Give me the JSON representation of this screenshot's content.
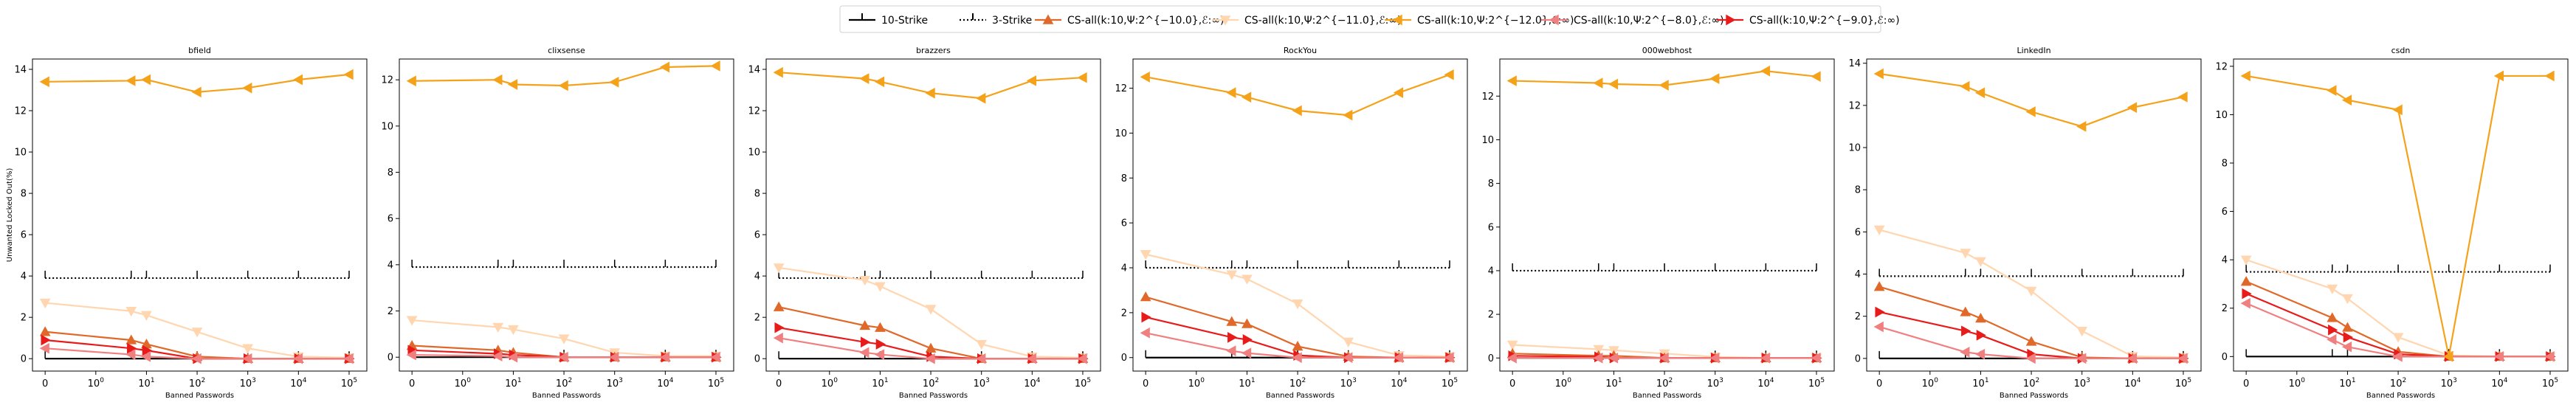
{
  "chart_data": {
    "type": "line",
    "xlabel": "Banned Passwords",
    "ylabel": "Unwanted Locked Out(%)",
    "x_scale": "symlog",
    "x_ticks": [
      {
        "v": 0,
        "t": "0"
      },
      {
        "v": 1,
        "t": "10^0"
      },
      {
        "v": 10,
        "t": "10^1"
      },
      {
        "v": 100,
        "t": "10^2"
      },
      {
        "v": 1000,
        "t": "10^3"
      },
      {
        "v": 10000,
        "t": "10^4"
      },
      {
        "v": 100000,
        "t": "10^5"
      }
    ],
    "x": [
      0,
      5,
      10,
      100,
      1000,
      10000,
      100000
    ],
    "legend": {
      "placement": "top-center",
      "entries": [
        {
          "label": "10-Strike",
          "color": "#000000",
          "style": "solid",
          "marker": "tick"
        },
        {
          "label": "3-Strike",
          "color": "#000000",
          "style": "dotted",
          "marker": "tick"
        },
        {
          "label": "CS-all(k:10,Ψ:2^{−10.0},ℰ:∞)",
          "color": "#e0692a",
          "style": "solid",
          "marker": "triangle-up"
        },
        {
          "label": "CS-all(k:10,Ψ:2^{−11.0},ℰ:∞)",
          "color": "#ffd6b0",
          "style": "solid",
          "marker": "triangle-down"
        },
        {
          "label": "CS-all(k:10,Ψ:2^{−12.0},ℰ:∞)",
          "color": "#f5a21b",
          "style": "solid",
          "marker": "triangle-left"
        },
        {
          "label": "CS-all(k:10,Ψ:2^{−8.0},ℰ:∞)",
          "color": "#f08080",
          "style": "solid",
          "marker": "triangle-left"
        },
        {
          "label": "CS-all(k:10,Ψ:2^{−9.0},ℰ:∞)",
          "color": "#e81b1b",
          "style": "solid",
          "marker": "triangle-right"
        }
      ]
    },
    "panels": [
      {
        "title": "bfield",
        "ylim": [
          -0.6,
          14.5
        ],
        "yticks": [
          0,
          2,
          4,
          6,
          8,
          10,
          12,
          14
        ],
        "series": [
          {
            "key": "strike10",
            "values": [
              0,
              0,
              0,
              0,
              0,
              0,
              0
            ]
          },
          {
            "key": "strike3",
            "values": [
              3.9,
              3.9,
              3.9,
              3.9,
              3.9,
              3.9,
              3.9
            ]
          },
          {
            "key": "psi10",
            "values": [
              1.3,
              0.9,
              0.7,
              0.1,
              0,
              0,
              0
            ]
          },
          {
            "key": "psi11",
            "values": [
              2.7,
              2.3,
              2.1,
              1.3,
              0.5,
              0.1,
              0.05
            ]
          },
          {
            "key": "psi12",
            "values": [
              13.4,
              13.45,
              13.5,
              12.9,
              13.1,
              13.5,
              13.75
            ]
          },
          {
            "key": "psi8",
            "values": [
              0.5,
              0.2,
              0.1,
              0,
              0,
              0,
              0
            ]
          },
          {
            "key": "psi9",
            "values": [
              0.9,
              0.5,
              0.4,
              0,
              0,
              0,
              0
            ]
          }
        ]
      },
      {
        "title": "clixsense",
        "ylim": [
          -0.6,
          12.9
        ],
        "yticks": [
          0,
          2,
          4,
          6,
          8,
          10,
          12
        ],
        "series": [
          {
            "key": "strike10",
            "values": [
              0,
              0,
              0,
              0,
              0,
              0,
              0
            ]
          },
          {
            "key": "strike3",
            "values": [
              3.9,
              3.9,
              3.9,
              3.9,
              3.9,
              3.9,
              3.9
            ]
          },
          {
            "key": "psi10",
            "values": [
              0.5,
              0.3,
              0.2,
              0,
              0,
              0,
              0
            ]
          },
          {
            "key": "psi11",
            "values": [
              1.6,
              1.3,
              1.2,
              0.8,
              0.2,
              0.05,
              0.05
            ]
          },
          {
            "key": "psi12",
            "values": [
              11.95,
              12.0,
              11.8,
              11.75,
              11.9,
              12.55,
              12.6
            ]
          },
          {
            "key": "psi8",
            "values": [
              0.1,
              0.05,
              0,
              0,
              0,
              0,
              0
            ]
          },
          {
            "key": "psi9",
            "values": [
              0.3,
              0.15,
              0.1,
              0,
              0,
              0,
              0
            ]
          }
        ]
      },
      {
        "title": "brazzers",
        "ylim": [
          -0.6,
          14.5
        ],
        "yticks": [
          0,
          2,
          4,
          6,
          8,
          10,
          12,
          14
        ],
        "series": [
          {
            "key": "strike10",
            "values": [
              0,
              0,
              0,
              0,
              0,
              0,
              0
            ]
          },
          {
            "key": "strike3",
            "values": [
              3.9,
              3.9,
              3.9,
              3.9,
              3.9,
              3.9,
              3.9
            ]
          },
          {
            "key": "psi10",
            "values": [
              2.5,
              1.6,
              1.5,
              0.5,
              0,
              0,
              0
            ]
          },
          {
            "key": "psi11",
            "values": [
              4.4,
              3.8,
              3.5,
              2.4,
              0.7,
              0.1,
              0.05
            ]
          },
          {
            "key": "psi12",
            "values": [
              13.85,
              13.55,
              13.4,
              12.85,
              12.6,
              13.45,
              13.6
            ]
          },
          {
            "key": "psi8",
            "values": [
              1.0,
              0.3,
              0.2,
              0,
              0,
              0,
              0
            ]
          },
          {
            "key": "psi9",
            "values": [
              1.5,
              0.8,
              0.7,
              0.1,
              0,
              0,
              0
            ]
          }
        ]
      },
      {
        "title": "RockYou",
        "ylim": [
          -0.6,
          13.3
        ],
        "yticks": [
          0,
          2,
          4,
          6,
          8,
          10,
          12
        ],
        "series": [
          {
            "key": "strike10",
            "values": [
              0,
              0,
              0,
              0,
              0,
              0,
              0
            ]
          },
          {
            "key": "strike3",
            "values": [
              4.0,
              4.0,
              4.0,
              4.0,
              4.0,
              4.0,
              4.0
            ]
          },
          {
            "key": "psi10",
            "values": [
              2.7,
              1.6,
              1.5,
              0.5,
              0.05,
              0,
              0
            ]
          },
          {
            "key": "psi11",
            "values": [
              4.6,
              3.7,
              3.5,
              2.4,
              0.7,
              0.1,
              0.05
            ]
          },
          {
            "key": "psi12",
            "values": [
              12.5,
              11.8,
              11.6,
              11.0,
              10.8,
              11.8,
              12.6
            ]
          },
          {
            "key": "psi8",
            "values": [
              1.1,
              0.3,
              0.2,
              0,
              0,
              0,
              0
            ]
          },
          {
            "key": "psi9",
            "values": [
              1.8,
              0.9,
              0.8,
              0.1,
              0,
              0,
              0
            ]
          }
        ]
      },
      {
        "title": "000webhost",
        "ylim": [
          -0.6,
          13.7
        ],
        "yticks": [
          0,
          2,
          4,
          6,
          8,
          10,
          12
        ],
        "series": [
          {
            "key": "strike10",
            "values": [
              0,
              0,
              0,
              0,
              0,
              0,
              0
            ]
          },
          {
            "key": "strike3",
            "values": [
              4.0,
              4.0,
              4.0,
              4.0,
              4.0,
              4.0,
              4.0
            ]
          },
          {
            "key": "psi10",
            "values": [
              0.2,
              0.1,
              0.1,
              0,
              0,
              0,
              0
            ]
          },
          {
            "key": "psi11",
            "values": [
              0.6,
              0.4,
              0.35,
              0.2,
              0.05,
              0,
              0
            ]
          },
          {
            "key": "psi12",
            "values": [
              12.7,
              12.6,
              12.55,
              12.5,
              12.8,
              13.15,
              12.9
            ]
          },
          {
            "key": "psi8",
            "values": [
              0,
              0,
              0,
              0,
              0,
              0,
              0
            ]
          },
          {
            "key": "psi9",
            "values": [
              0.1,
              0.05,
              0,
              0,
              0,
              0,
              0
            ]
          }
        ]
      },
      {
        "title": "LinkedIn",
        "ylim": [
          -0.6,
          14.2
        ],
        "yticks": [
          0,
          2,
          4,
          6,
          8,
          10,
          12,
          14
        ],
        "series": [
          {
            "key": "strike10",
            "values": [
              0,
              0,
              0,
              0,
              0,
              0,
              0
            ]
          },
          {
            "key": "strike3",
            "values": [
              3.9,
              3.9,
              3.9,
              3.9,
              3.9,
              3.9,
              3.9
            ]
          },
          {
            "key": "psi10",
            "values": [
              3.4,
              2.2,
              1.9,
              0.8,
              0.05,
              0,
              0
            ]
          },
          {
            "key": "psi11",
            "values": [
              6.1,
              5.0,
              4.6,
              3.2,
              1.3,
              0.1,
              0.05
            ]
          },
          {
            "key": "psi12",
            "values": [
              13.5,
              12.9,
              12.6,
              11.7,
              11.0,
              11.9,
              12.4
            ]
          },
          {
            "key": "psi8",
            "values": [
              1.5,
              0.3,
              0.2,
              0,
              0,
              0,
              0
            ]
          },
          {
            "key": "psi9",
            "values": [
              2.2,
              1.3,
              1.1,
              0.2,
              0,
              0,
              0
            ]
          }
        ]
      },
      {
        "title": "csdn",
        "ylim": [
          -0.6,
          12.3
        ],
        "yticks": [
          0,
          2,
          4,
          6,
          8,
          10,
          12
        ],
        "series": [
          {
            "key": "strike10",
            "values": [
              0,
              0,
              0,
              0,
              0,
              0,
              0
            ]
          },
          {
            "key": "strike3",
            "values": [
              3.5,
              3.5,
              3.5,
              3.5,
              3.5,
              3.5,
              3.5
            ]
          },
          {
            "key": "psi10",
            "values": [
              3.1,
              1.6,
              1.2,
              0.2,
              0,
              0,
              0
            ]
          },
          {
            "key": "psi11",
            "values": [
              4.0,
              2.8,
              2.4,
              0.8,
              0.05,
              0,
              0
            ]
          },
          {
            "key": "psi12",
            "values": [
              11.6,
              11.0,
              10.6,
              10.2,
              0,
              11.6,
              11.6
            ]
          },
          {
            "key": "psi8",
            "values": [
              2.2,
              0.7,
              0.4,
              0,
              0,
              0,
              0
            ]
          },
          {
            "key": "psi9",
            "values": [
              2.6,
              1.1,
              0.8,
              0.1,
              0,
              0,
              0
            ]
          }
        ]
      }
    ]
  }
}
